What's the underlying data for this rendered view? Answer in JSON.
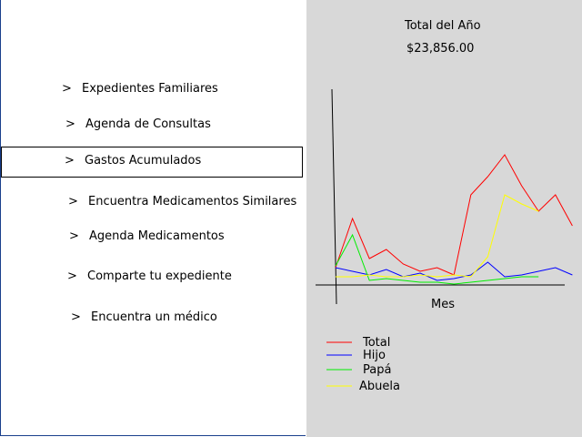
{
  "menu": {
    "items": [
      {
        "chevron": ">",
        "label": "Expedientes Familiares"
      },
      {
        "chevron": ">",
        "label": "Agenda de Consultas"
      },
      {
        "chevron": ">",
        "label": "Gastos Acumulados"
      },
      {
        "chevron": ">",
        "label": "Encuentra Medicamentos Similares"
      },
      {
        "chevron": ">",
        "label": "Agenda Medicamentos"
      },
      {
        "chevron": ">",
        "label": "Comparte tu expediente"
      },
      {
        "chevron": ">",
        "label": "Encuentra un médico"
      }
    ],
    "selected_index": 2
  },
  "summary": {
    "title": "Total del Año",
    "amount": "$23,856.00"
  },
  "chart_data": {
    "type": "line",
    "xlabel": "Mes",
    "ylabel": "",
    "ylim": [
      0,
      100
    ],
    "grid": false,
    "legend_placement": "bottom-left",
    "series": [
      {
        "name": "Total",
        "color": "#ff0000",
        "x": [
          0,
          1,
          2,
          3,
          4,
          5,
          6,
          7,
          8,
          9,
          10,
          11,
          12,
          13,
          14
        ],
        "values": [
          9,
          36,
          14,
          19,
          11,
          7,
          9,
          5,
          49,
          59,
          71,
          54,
          40,
          49,
          32
        ]
      },
      {
        "name": "Hijo",
        "color": "#0000ff",
        "x": [
          0,
          1,
          2,
          3,
          4,
          5,
          6,
          7,
          8,
          9,
          10,
          11,
          12,
          13,
          14
        ],
        "values": [
          9,
          7,
          5,
          8,
          4,
          6,
          2,
          3,
          5,
          12,
          4,
          5,
          7,
          9,
          5
        ]
      },
      {
        "name": "Papá",
        "color": "#00ee00",
        "x": [
          0,
          1,
          2,
          3,
          4,
          5,
          6,
          7,
          8,
          9,
          10,
          11,
          12
        ],
        "values": [
          10,
          27,
          2,
          3,
          2,
          1,
          1,
          0,
          1,
          2,
          3,
          4,
          4
        ]
      },
      {
        "name": "Abuela",
        "color": "#ffff00",
        "x": [
          0,
          1,
          2,
          3,
          4,
          5,
          6,
          7,
          8,
          9,
          10,
          11,
          12
        ],
        "values": [
          4,
          4,
          5,
          4,
          4,
          5,
          4,
          5,
          4,
          15,
          49,
          44,
          40
        ]
      }
    ]
  }
}
